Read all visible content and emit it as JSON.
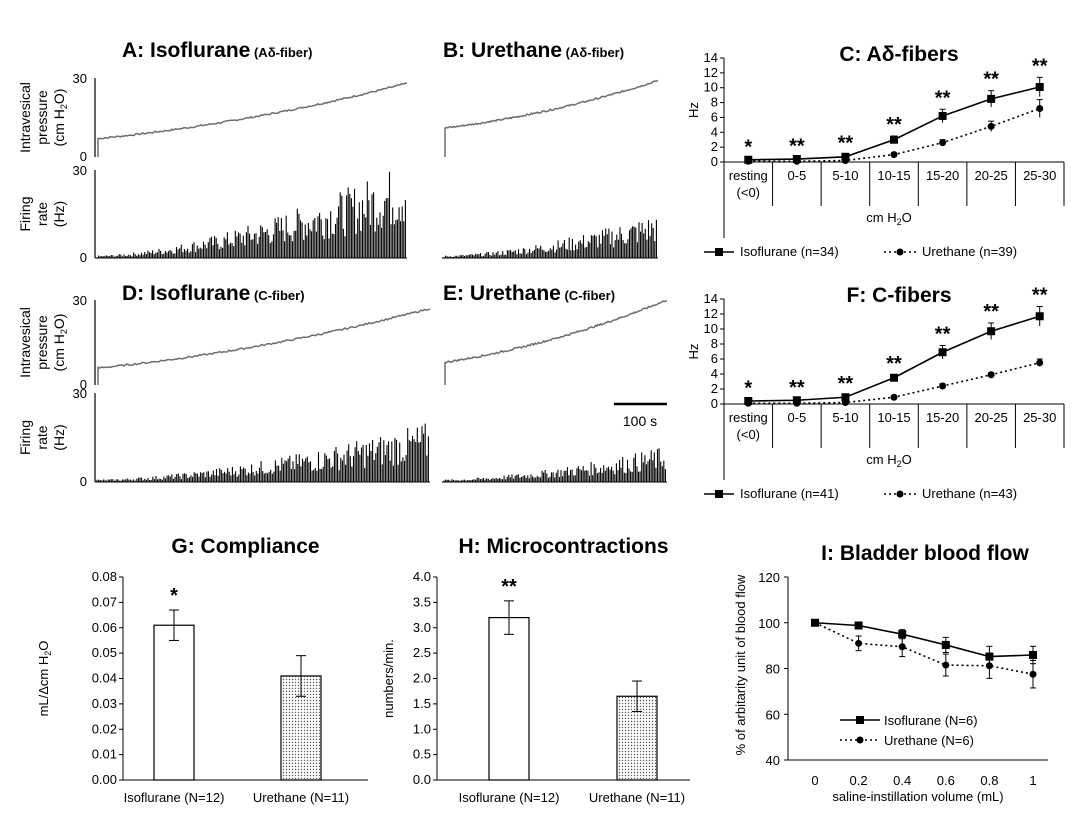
{
  "colors": {
    "trace": "#6e6e6e",
    "bar_fill": "#000000",
    "axis": "#000000"
  },
  "traces": {
    "ylabel_pressure": [
      "Intravesical",
      "pressure",
      "(cm H",
      "2",
      "O)"
    ],
    "ylabel_firing": [
      "Firing",
      "rate",
      "(Hz)"
    ],
    "scale_bar": "100 s",
    "panels": [
      {
        "id": "A",
        "title": "A: Isoflurane",
        "sub": "(Aδ-fiber)",
        "pressure_ticks": [
          "30",
          "0"
        ],
        "firing_ticks": [
          "30",
          "0"
        ],
        "pressure_start": 7,
        "pressure_end": 28,
        "firing_growth": 1.0
      },
      {
        "id": "B",
        "title": "B: Urethane",
        "sub": "(Aδ-fiber)",
        "pressure_start": 11,
        "pressure_end": 29,
        "firing_growth": 0.45
      },
      {
        "id": "D",
        "title": "D: Isoflurane",
        "sub": "(C-fiber)",
        "pressure_ticks": [
          "30",
          "0"
        ],
        "firing_ticks": [
          "30",
          "0"
        ],
        "pressure_start": 6,
        "pressure_end": 27,
        "firing_growth": 0.6
      },
      {
        "id": "E",
        "title": "E: Urethane",
        "sub": "(C-fiber)",
        "pressure_start": 8,
        "pressure_end": 30,
        "firing_growth": 0.35
      }
    ]
  },
  "chart_data": [
    {
      "id": "C",
      "type": "line",
      "title": "C: Aδ-fibers",
      "categories": [
        [
          "resting",
          "(<0)"
        ],
        [
          "0-5"
        ],
        [
          "5-10"
        ],
        [
          "10-15"
        ],
        [
          "15-20"
        ],
        [
          "20-25"
        ],
        [
          "25-30"
        ]
      ],
      "xlabel": [
        "cm H",
        "2",
        "O"
      ],
      "ylabel": "Hz",
      "ylim": [
        0,
        14
      ],
      "yticks": [
        "0",
        "2",
        "4",
        "6",
        "8",
        "10",
        "12",
        "14"
      ],
      "significance": [
        "*",
        "**",
        "**",
        "**",
        "**",
        "**",
        "**"
      ],
      "series": [
        {
          "name": "Isoflurane (n=34)",
          "style": "solid",
          "marker": "square",
          "values": [
            0.3,
            0.4,
            0.7,
            3.0,
            6.2,
            8.5,
            10.1
          ],
          "errors": [
            0.2,
            0.2,
            0.3,
            0.5,
            0.9,
            1.1,
            1.3
          ]
        },
        {
          "name": "Urethane (n=39)",
          "style": "dotted",
          "marker": "circle",
          "values": [
            0.1,
            0.1,
            0.2,
            1.0,
            2.6,
            4.8,
            7.2
          ],
          "errors": [
            0.1,
            0.1,
            0.1,
            0.2,
            0.4,
            0.7,
            1.2
          ]
        }
      ]
    },
    {
      "id": "F",
      "type": "line",
      "title": "F: C-fibers",
      "categories": [
        [
          "resting",
          "(<0)"
        ],
        [
          "0-5"
        ],
        [
          "5-10"
        ],
        [
          "10-15"
        ],
        [
          "15-20"
        ],
        [
          "20-25"
        ],
        [
          "25-30"
        ]
      ],
      "xlabel": [
        "cm H",
        "2",
        "O"
      ],
      "ylabel": "Hz",
      "ylim": [
        0,
        14
      ],
      "yticks": [
        "0",
        "2",
        "4",
        "6",
        "8",
        "10",
        "12",
        "14"
      ],
      "significance": [
        "*",
        "**",
        "**",
        "**",
        "**",
        "**",
        "**"
      ],
      "series": [
        {
          "name": "Isoflurane (n=41)",
          "style": "solid",
          "marker": "square",
          "values": [
            0.4,
            0.5,
            0.9,
            3.5,
            6.9,
            9.7,
            11.7
          ],
          "errors": [
            0.2,
            0.2,
            0.3,
            0.4,
            0.9,
            1.1,
            1.3
          ]
        },
        {
          "name": "Urethane (n=43)",
          "style": "dotted",
          "marker": "circle",
          "values": [
            0.1,
            0.1,
            0.2,
            0.9,
            2.4,
            3.9,
            5.5
          ],
          "errors": [
            0.1,
            0.1,
            0.1,
            0.2,
            0.3,
            0.3,
            0.5
          ]
        }
      ]
    },
    {
      "id": "G",
      "type": "bar",
      "title": "G: Compliance",
      "categories": [
        "Isoflurane (N=12)",
        "Urethane (N=11)"
      ],
      "values": [
        0.061,
        0.041
      ],
      "errors": [
        0.006,
        0.008
      ],
      "fills": [
        "white",
        "dotted"
      ],
      "ylabel": [
        "mL/Δcm H",
        "2",
        "O"
      ],
      "ylim": [
        0,
        0.08
      ],
      "yticks": [
        "0.00",
        "0.01",
        "0.02",
        "0.03",
        "0.04",
        "0.05",
        "0.06",
        "0.07",
        "0.08"
      ],
      "significance": [
        "*",
        ""
      ]
    },
    {
      "id": "H",
      "type": "bar",
      "title": "H: Microcontractions",
      "categories": [
        "Isoflurane (N=12)",
        "Urethane (N=11)"
      ],
      "values": [
        3.2,
        1.65
      ],
      "errors": [
        0.33,
        0.3
      ],
      "fills": [
        "white",
        "dotted"
      ],
      "ylabel": "numbers/min.",
      "ylim": [
        0,
        4.0
      ],
      "yticks": [
        "0.0",
        "0.5",
        "1.0",
        "1.5",
        "2.0",
        "2.5",
        "3.0",
        "3.5",
        "4.0"
      ],
      "significance": [
        "**",
        ""
      ]
    },
    {
      "id": "I",
      "type": "line",
      "title": "I: Bladder blood flow",
      "x": [
        0,
        0.2,
        0.4,
        0.6,
        0.8,
        1.0
      ],
      "xticks": [
        "0",
        "0.2",
        "0.4",
        "0.6",
        "0.8",
        "1"
      ],
      "xlabel": "saline-instillation volume (mL)",
      "ylabel": "% of arbitarity unit of blood flow",
      "ylim": [
        40,
        120
      ],
      "yticks": [
        "40",
        "60",
        "80",
        "100",
        "120"
      ],
      "series": [
        {
          "name": "Isoflurane (N=6)",
          "style": "solid",
          "marker": "square",
          "values": [
            100,
            98.8,
            95,
            90.3,
            85.2,
            85.9
          ],
          "errors": [
            0,
            1.5,
            2,
            3.3,
            4.5,
            3.8
          ]
        },
        {
          "name": "Urethane (N=6)",
          "style": "dotted",
          "marker": "circle",
          "values": [
            100,
            91,
            89.5,
            81.5,
            81.2,
            77.5
          ],
          "errors": [
            0,
            3.2,
            4.3,
            4.8,
            5.5,
            6
          ]
        }
      ]
    }
  ]
}
